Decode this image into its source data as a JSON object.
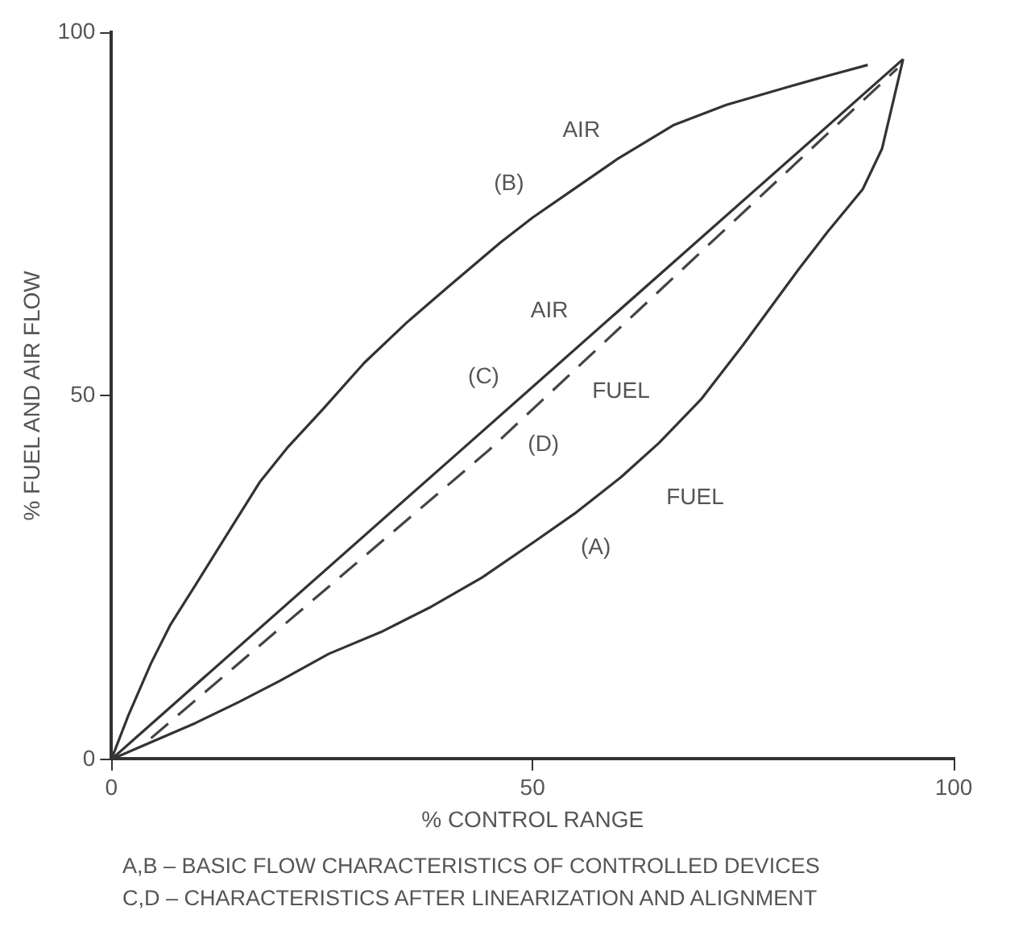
{
  "chart_data": {
    "type": "line",
    "xlabel": "% CONTROL RANGE",
    "ylabel": "% FUEL AND AIR FLOW",
    "xlim": [
      0,
      100
    ],
    "ylim": [
      0,
      100
    ],
    "xticks": [
      0,
      50,
      100
    ],
    "yticks": [
      0,
      50,
      100
    ],
    "marker": "none",
    "series": [
      {
        "color": "#333333",
        "line_style": "solid",
        "x": [
          0,
          2,
          4.7,
          7,
          10,
          13.5,
          17.6,
          21,
          25,
          30,
          35,
          40,
          46.2,
          50,
          55,
          60,
          66.7,
          73,
          80.4,
          85,
          89.8
        ],
        "values": [
          0,
          6,
          13.2,
          18.5,
          24,
          30.5,
          38.1,
          43,
          48,
          54.5,
          60,
          65,
          71.1,
          74.5,
          78.5,
          82.5,
          87.2,
          90,
          92.5,
          94,
          95.5
        ]
      },
      {
        "color": "#333333",
        "line_style": "solid",
        "x": [
          0,
          41.5,
          94
        ],
        "values": [
          0,
          42.5,
          96.3
        ]
      },
      {
        "color": "#444444",
        "line_style": "dashed",
        "x": [
          4.7,
          44.8,
          93.3
        ],
        "values": [
          2.9,
          42.5,
          95
        ]
      },
      {
        "color": "#333333",
        "line_style": "solid",
        "x": [
          0,
          5,
          10,
          15,
          20,
          25.8,
          32,
          38,
          44,
          50.3,
          55,
          60.5,
          65,
          70,
          75,
          81.6,
          85,
          89.2,
          91.5,
          92.6,
          94
        ],
        "values": [
          0,
          2.5,
          5,
          7.8,
          10.8,
          14.5,
          17.5,
          21,
          25,
          30,
          33.8,
          38.8,
          43.5,
          49.5,
          57,
          67.4,
          72.5,
          78.4,
          84,
          89.4,
          96.3
        ]
      }
    ],
    "annotations": [
      "AIR",
      "(B)",
      "AIR",
      "(C)",
      "FUEL",
      "(D)",
      "FUEL",
      "(A)",
      "A,B – BASIC FLOW CHARACTERISTICS OF CONTROLLED DEVICES",
      "C,D – CHARACTERISTICS AFTER LINEARIZATION AND ALIGNMENT"
    ]
  }
}
